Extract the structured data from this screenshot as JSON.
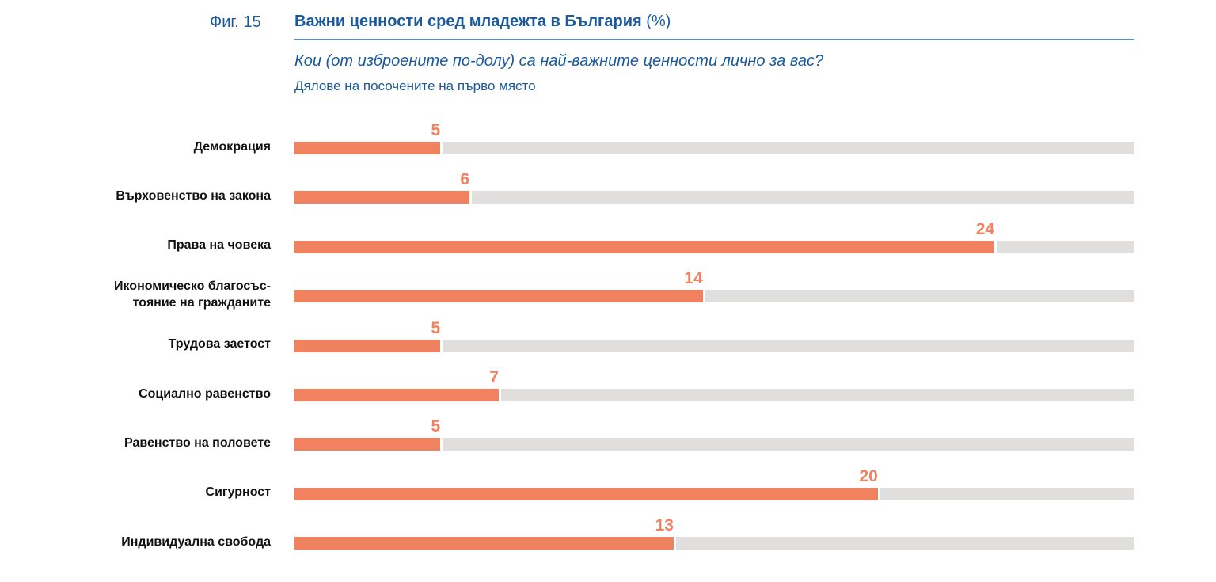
{
  "figure_label": "Фиг. 15",
  "chart_data": {
    "type": "bar",
    "orientation": "horizontal",
    "title": "Важни ценности сред младежта в България",
    "title_unit": "(%)",
    "question": "Кои (от изброените по-долу) са най-важните ценности лично за вас?",
    "subtitle": "Дялове на посочените на първо място",
    "categories": [
      "Демокрация",
      "Върховенство на закона",
      "Права на човека",
      "Икономическо благосъс-\nтояние на гражданите",
      "Трудова заетост",
      "Социално равенство",
      "Равенство на половете",
      "Сигурност",
      "Индивидуална свобода"
    ],
    "values": [
      5,
      6,
      24,
      14,
      5,
      7,
      5,
      20,
      13
    ],
    "xlim": [
      0,
      28.8
    ],
    "grid": false,
    "colors": {
      "value": "#f08260",
      "track": "#e0dfdd",
      "title": "#1a5a9c"
    }
  }
}
